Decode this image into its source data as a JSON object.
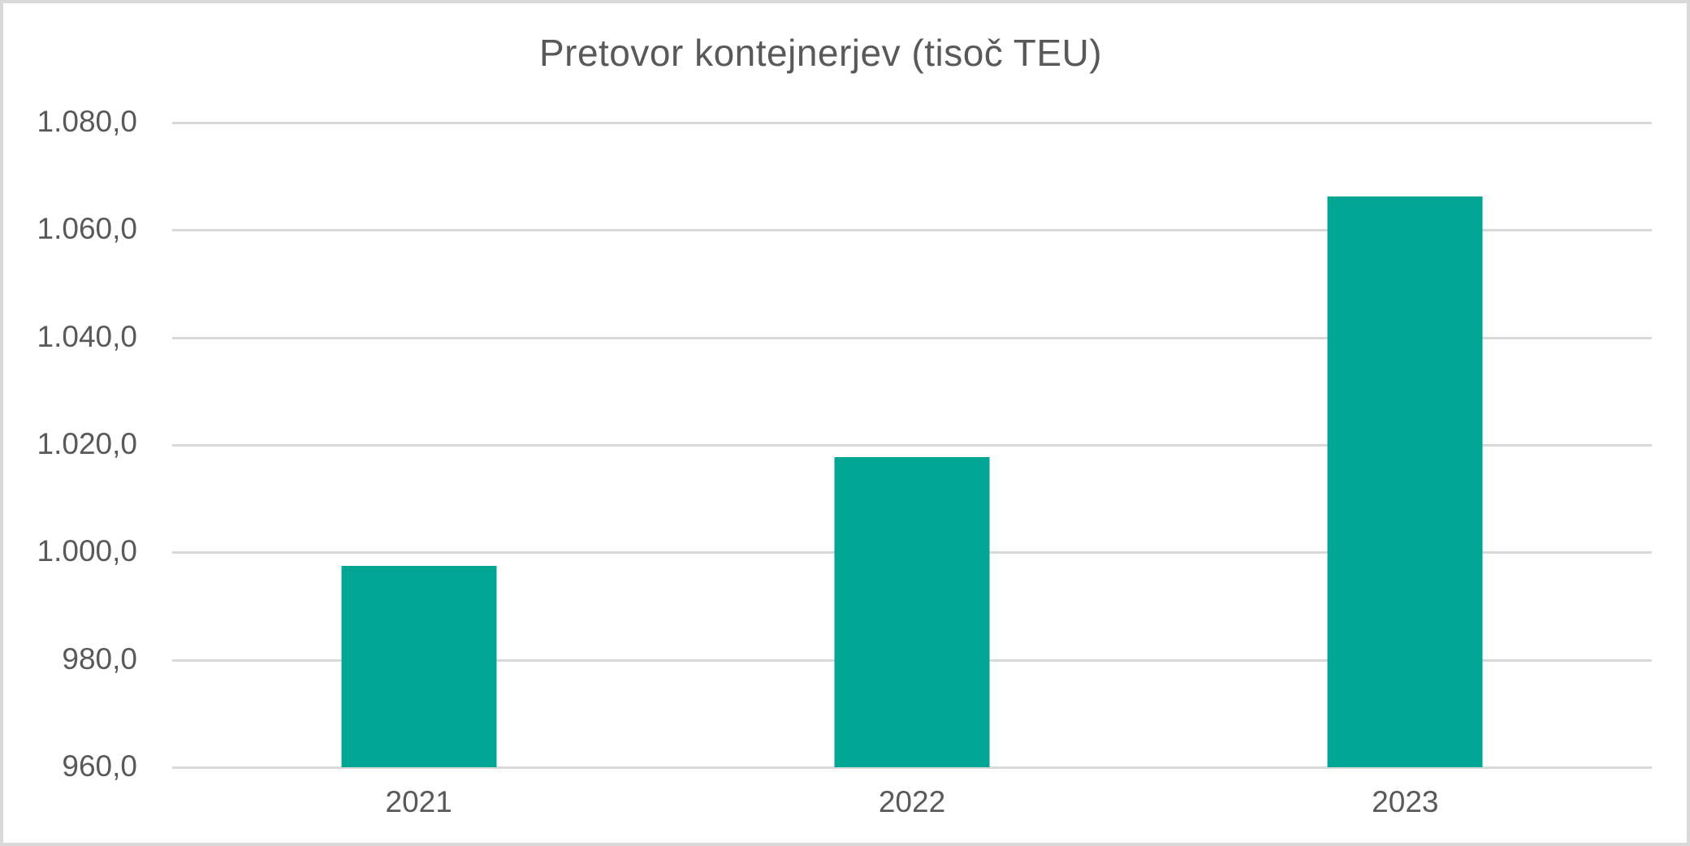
{
  "chart_data": {
    "type": "bar",
    "title": "Pretovor kontejnerjev (tisoč TEU)",
    "categories": [
      "2021",
      "2022",
      "2023"
    ],
    "values": [
      997.5,
      1017.8,
      1066.2
    ],
    "series": [
      {
        "name": "Pretovor kontejnerjev (tisoč TEU)",
        "values": [
          997.5,
          1017.8,
          1066.2
        ]
      }
    ],
    "xlabel": "",
    "ylabel": "",
    "ylim": [
      960,
      1080
    ],
    "ytick_step": 20,
    "ytick_labels_top_to_bottom": [
      "1.080,0",
      "1.060,0",
      "1.040,0",
      "1.020,0",
      "1.000,0",
      "980,0",
      "960,0"
    ],
    "grid": true,
    "legend_position": "none",
    "colors": {
      "bar": "#00a693",
      "gridline": "#d9d9d9",
      "text": "#595959",
      "frame_border": "#d9d9d9",
      "background": "#ffffff"
    }
  }
}
